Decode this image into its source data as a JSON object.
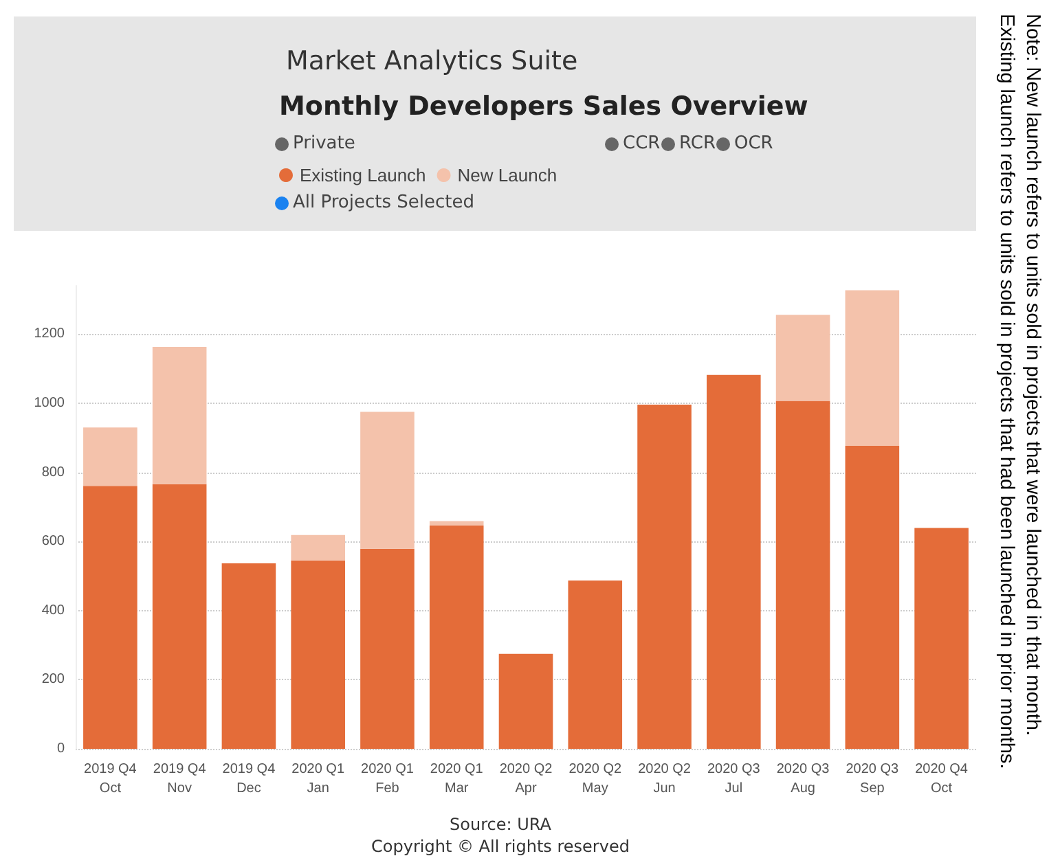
{
  "chart_data": {
    "type": "bar",
    "title": "Monthly Developers Sales Overview",
    "subtitle": "Market Analytics Suite",
    "categories": [
      "2019 Q4\nOct",
      "2019 Q4\nNov",
      "2019 Q4\nDec",
      "2020 Q1\nJan",
      "2020 Q1\nFeb",
      "2020 Q1\nMar",
      "2020 Q2\nApr",
      "2020 Q2\nMay",
      "2020 Q2\nJun",
      "2020 Q3\nJul",
      "2020 Q3\nAug",
      "2020 Q3\nSep",
      "2020 Q4\nOct"
    ],
    "series": [
      {
        "name": "Existing Launch",
        "color": "#e46c39",
        "values": [
          761,
          766,
          537,
          545,
          579,
          646,
          275,
          487,
          996,
          1082,
          1007,
          877,
          639
        ]
      },
      {
        "name": "New Launch",
        "color": "#f4c2ab",
        "values": [
          169,
          397,
          null,
          74,
          396,
          13,
          null,
          null,
          null,
          null,
          249,
          450,
          null
        ]
      }
    ],
    "stacked": true,
    "ylim": [
      0,
      1340
    ],
    "yticks": [
      0,
      200,
      400,
      600,
      800,
      1000,
      1200
    ],
    "grid": "y",
    "legend": "top left",
    "annotations": [
      "Private",
      "CCR",
      "RCR",
      "OCR",
      "All Projects Selected",
      "Source: URA",
      "Copyright © All rights reserved",
      "Note: New launch refers to units sold in projects that were launched in that month.",
      "Existing launch refers to units sold in projects that had been launched in prior months."
    ]
  }
}
